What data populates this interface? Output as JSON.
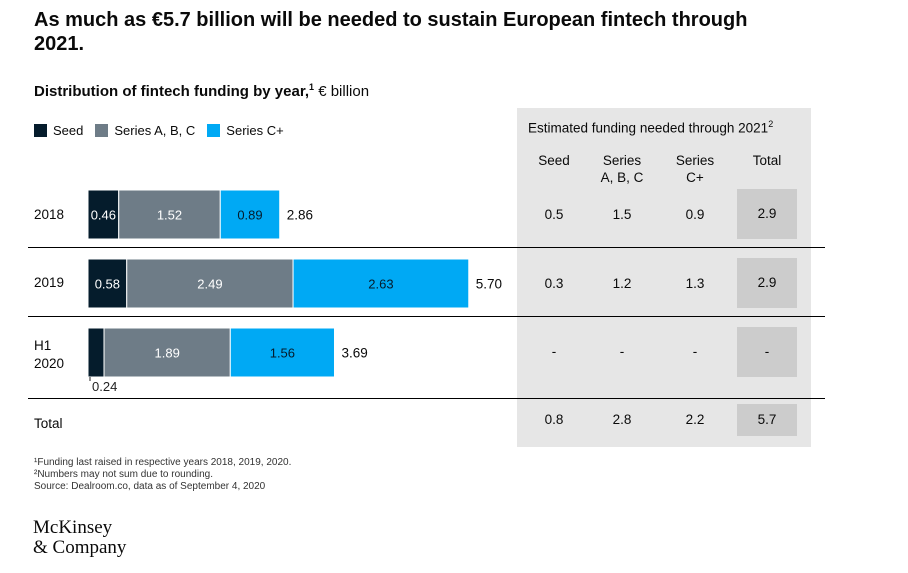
{
  "header": {
    "title": "As much as €5.7 billion will be needed to sustain European fintech through 2021.",
    "subtitle_bold": "Distribution of fintech funding by year,",
    "subtitle_sup": "1",
    "subtitle_unit": "€ billion"
  },
  "legend": [
    {
      "label": "Seed",
      "color": "#051c2c"
    },
    {
      "label": "Series A, B, C",
      "color": "#6e7c87"
    },
    {
      "label": "Series C+",
      "color": "#00a9f4"
    }
  ],
  "chart_data": {
    "type": "bar",
    "orientation": "horizontal",
    "stacked": true,
    "categories": [
      "2018",
      "2019",
      "H1 2020"
    ],
    "series": [
      {
        "name": "Seed",
        "values": [
          0.46,
          0.58,
          0.24
        ],
        "color": "#051c2c"
      },
      {
        "name": "Series A, B, C",
        "values": [
          1.52,
          2.49,
          1.89
        ],
        "color": "#6e7c87"
      },
      {
        "name": "Series C+",
        "values": [
          0.89,
          2.63,
          1.56
        ],
        "color": "#00a9f4"
      }
    ],
    "value_labels": [
      [
        "0.46",
        "1.52",
        "0.89"
      ],
      [
        "0.58",
        "2.49",
        "2.63"
      ],
      [
        "0.24",
        "1.89",
        "1.56"
      ]
    ],
    "totals": [
      "2.86",
      "5.70",
      "3.69"
    ],
    "row_labels": [
      "2018",
      "2019",
      "H1\n2020"
    ],
    "total_row_label": "Total"
  },
  "estimates": {
    "title": "Estimated funding needed through 2021",
    "title_sup": "2",
    "columns": [
      "Seed",
      "Series\nA, B, C",
      "Series\nC+",
      "Total"
    ],
    "rows": [
      [
        "0.5",
        "1.5",
        "0.9",
        "2.9"
      ],
      [
        "0.3",
        "1.2",
        "1.3",
        "2.9"
      ],
      [
        "-",
        "-",
        "-",
        "-"
      ],
      [
        "0.8",
        "2.8",
        "2.2",
        "5.7"
      ]
    ]
  },
  "footnotes": [
    "¹Funding last raised in respective years 2018, 2019, 2020.",
    "²Numbers may not sum due to rounding.",
    "Source: Dealroom.co, data as of September 4, 2020"
  ],
  "logo": {
    "line1": "McKinsey",
    "line2": "& Company"
  }
}
